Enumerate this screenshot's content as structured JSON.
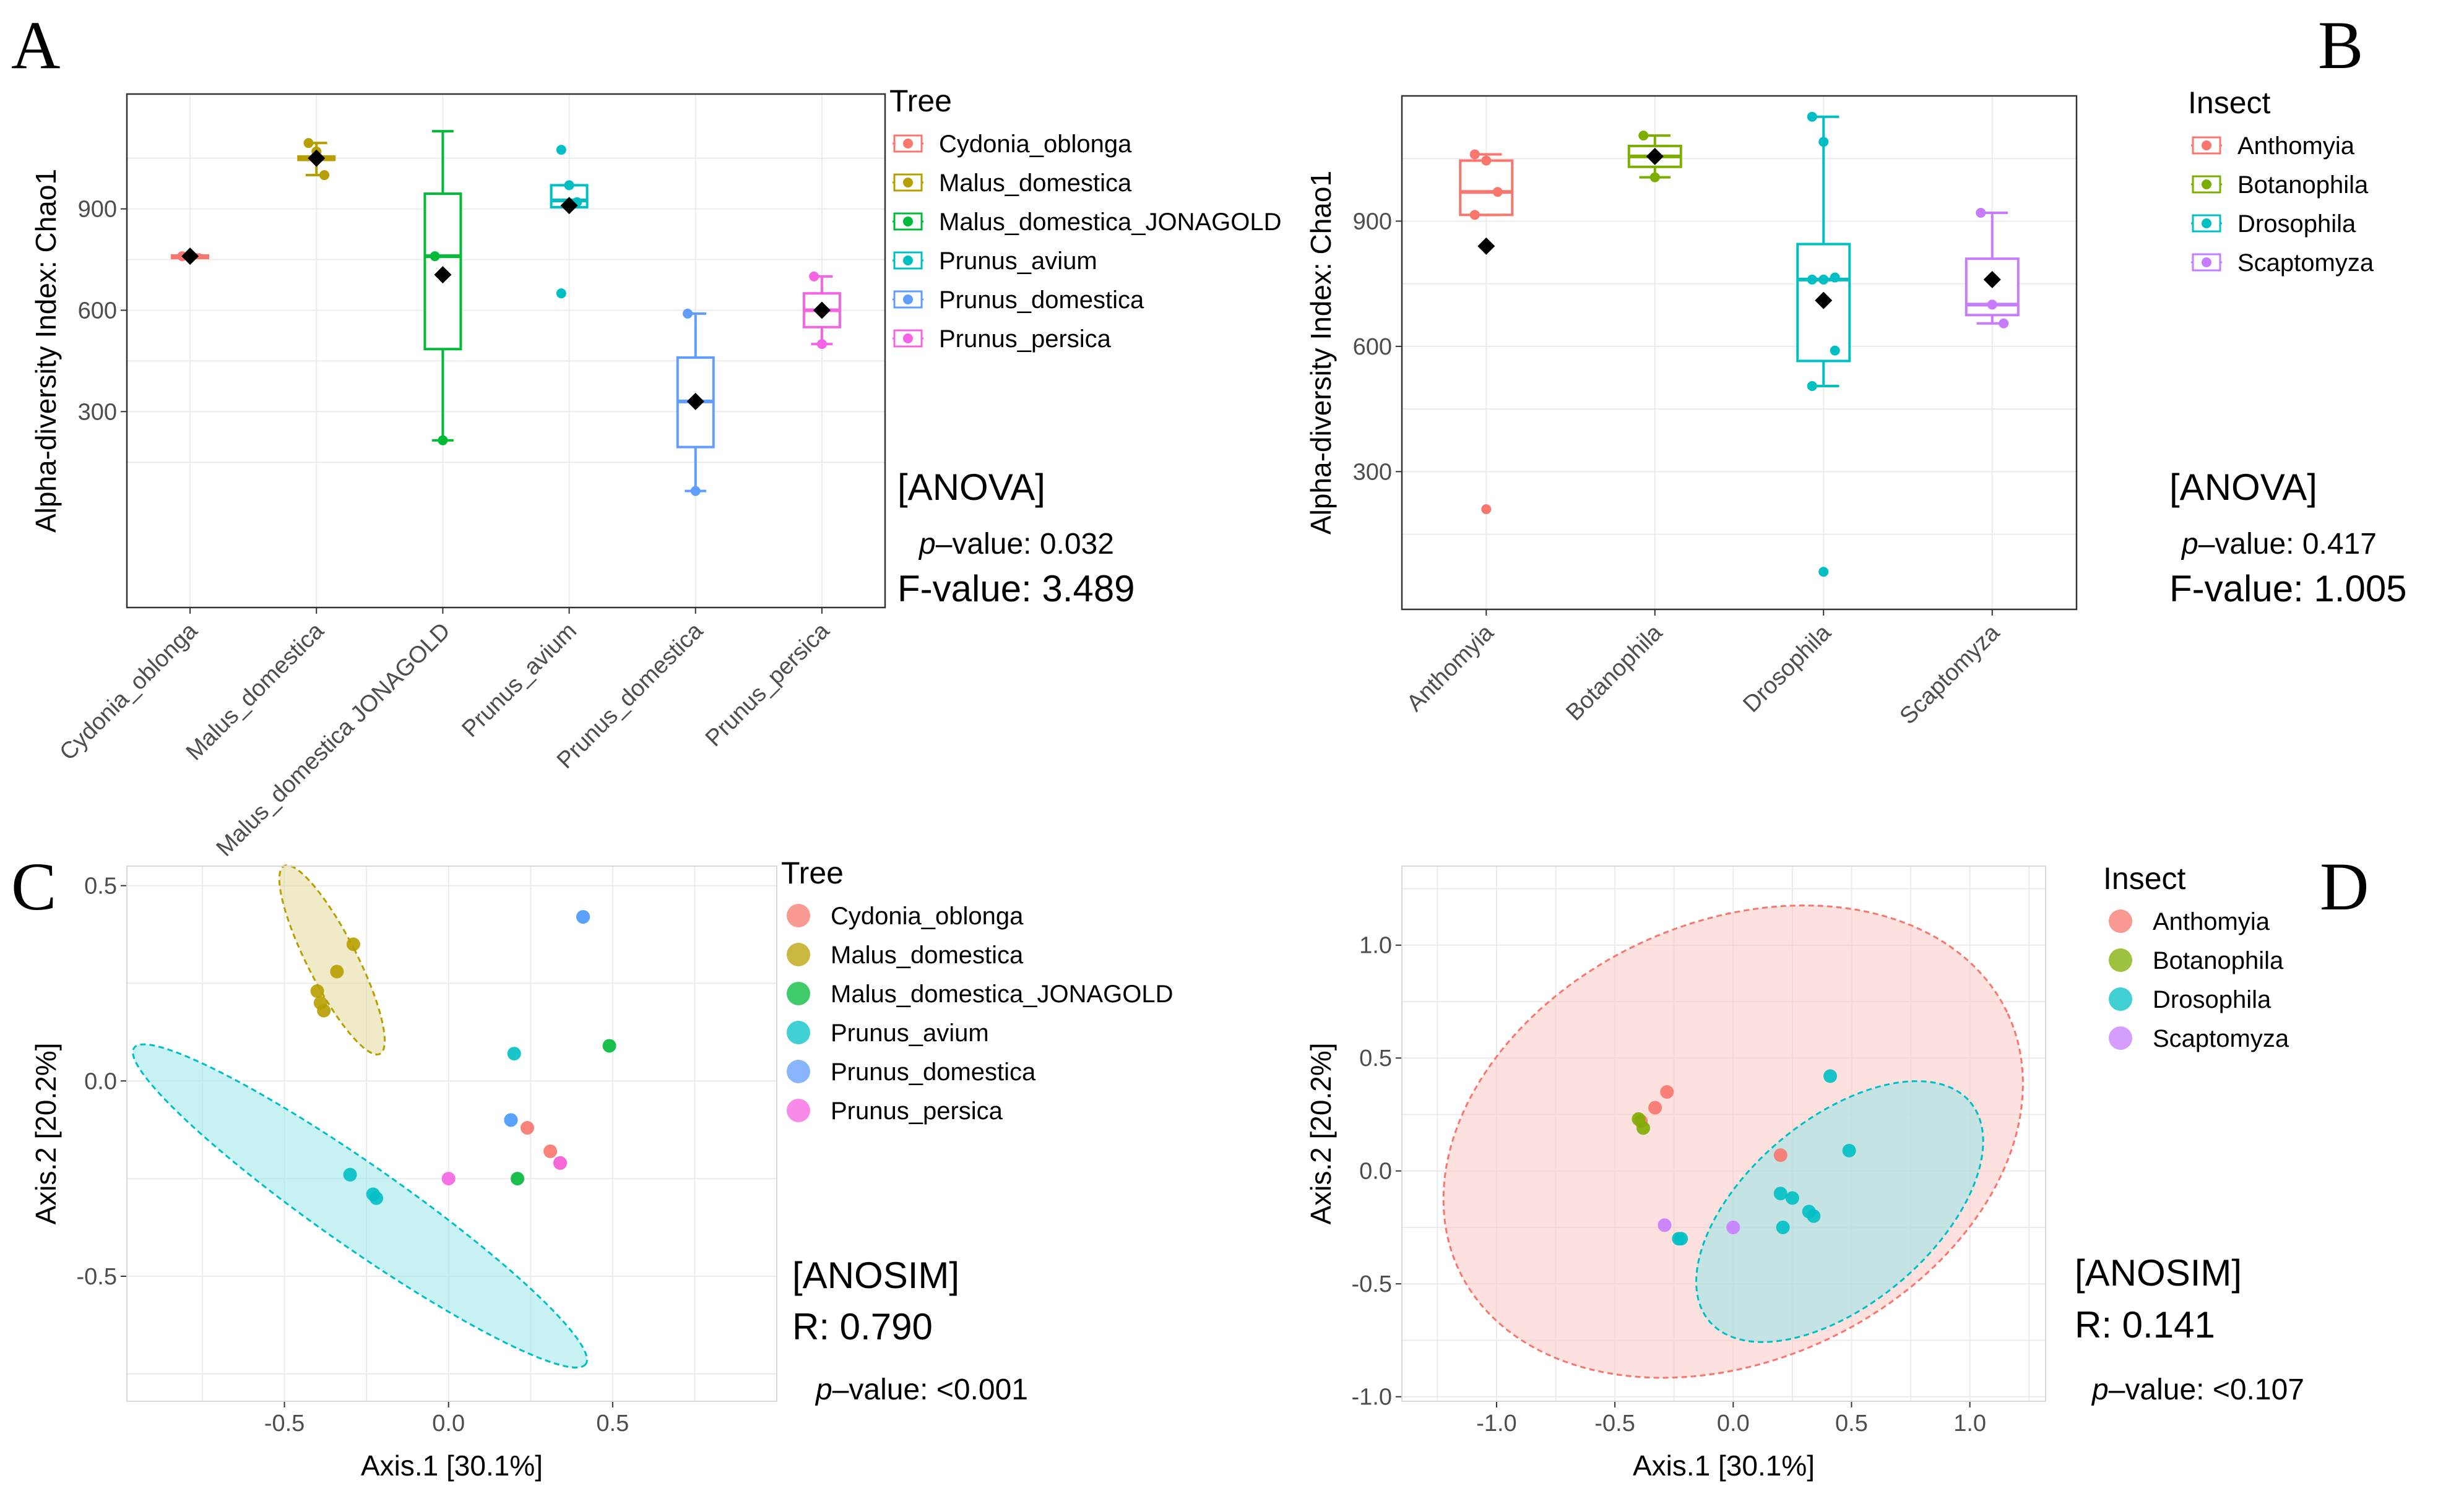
{
  "colors": {
    "Cydonia_oblonga": "#F8766D",
    "Malus_domestica": "#B79F00",
    "Malus_domestica_JONAGOLD": "#00BA38",
    "Prunus_avium": "#00BFC4",
    "Prunus_domestica": "#619CFF",
    "Prunus_persica": "#F564E3",
    "Anthomyia": "#F8766D",
    "Botanophila": "#7CAE00",
    "Drosophila": "#00BFC4",
    "Scaptomyza": "#C77CFF"
  },
  "panels": {
    "A": {
      "label": "A",
      "stat_name": "[ANOVA]",
      "p_label": "p",
      "p_text": "–value: 0.032",
      "f_text": "F-value: 3.489",
      "legend_title": "Tree"
    },
    "B": {
      "label": "B",
      "stat_name": "[ANOVA]",
      "p_label": "p",
      "p_text": "–value: 0.417",
      "f_text": "F-value: 1.005",
      "legend_title": "Insect"
    },
    "C": {
      "label": "C",
      "stat_name": "[ANOSIM]",
      "r_text": "R: 0.790",
      "p_label": "p",
      "p_text": "–value: <0.001",
      "legend_title": "Tree"
    },
    "D": {
      "label": "D",
      "stat_name": "[ANOSIM]",
      "r_text": "R: 0.141",
      "p_label": "p",
      "p_text": "–value: <0.107",
      "legend_title": "Insect"
    }
  },
  "chart_data": [
    {
      "panel": "A",
      "type": "box",
      "ylabel": "Alpha-diversity Index: Chao1",
      "xlabel": "",
      "ylim": [
        -280,
        1240
      ],
      "yticks": [
        300,
        600,
        900
      ],
      "grid": true,
      "legend_title": "Tree",
      "categories": [
        "Cydonia_oblonga",
        "Malus_domestica",
        "Malus_domestica JONAGOLD",
        "Prunus_avium",
        "Prunus_domestica",
        "Prunus_persica"
      ],
      "legend": [
        "Cydonia_oblonga",
        "Malus_domestica",
        "Malus_domestica_JONAGOLD",
        "Prunus_avium",
        "Prunus_domestica",
        "Prunus_persica"
      ],
      "groups": [
        {
          "name": "Cydonia_oblonga",
          "q1": 758,
          "median": 760,
          "q3": 762,
          "whisker_low": 755,
          "whisker_high": 765,
          "mean": 760,
          "points": [
            760
          ]
        },
        {
          "name": "Malus_domestica",
          "q1": 1045,
          "median": 1050,
          "q3": 1055,
          "whisker_low": 1000,
          "whisker_high": 1095,
          "mean": 1050,
          "points": [
            1095,
            1070,
            1000
          ]
        },
        {
          "name": "Malus_domestica_JONAGOLD",
          "q1": 485,
          "median": 760,
          "q3": 945,
          "whisker_low": 215,
          "whisker_high": 1130,
          "mean": 705,
          "points": [
            760,
            215
          ]
        },
        {
          "name": "Prunus_avium",
          "q1": 905,
          "median": 925,
          "q3": 970,
          "whisker_low": 905,
          "whisker_high": 970,
          "mean": 910,
          "points": [
            1075,
            970,
            920,
            650
          ]
        },
        {
          "name": "Prunus_domestica",
          "q1": 195,
          "median": 330,
          "q3": 460,
          "whisker_low": 65,
          "whisker_high": 590,
          "mean": 330,
          "points": [
            590,
            65
          ]
        },
        {
          "name": "Prunus_persica",
          "q1": 550,
          "median": 600,
          "q3": 650,
          "whisker_low": 500,
          "whisker_high": 700,
          "mean": 600,
          "points": [
            700,
            500
          ]
        }
      ]
    },
    {
      "panel": "B",
      "type": "box",
      "ylabel": "Alpha-diversity Index: Chao1",
      "xlabel": "",
      "ylim": [
        -30,
        1200
      ],
      "yticks": [
        300,
        600,
        900
      ],
      "grid": true,
      "legend_title": "Insect",
      "categories": [
        "Anthomyia",
        "Botanophila",
        "Drosophila",
        "Scaptomyza"
      ],
      "legend": [
        "Anthomyia",
        "Botanophila",
        "Drosophila",
        "Scaptomyza"
      ],
      "groups": [
        {
          "name": "Anthomyia",
          "q1": 915,
          "median": 970,
          "q3": 1045,
          "whisker_low": 915,
          "whisker_high": 1060,
          "mean": 840,
          "points": [
            1060,
            1045,
            970,
            915,
            210
          ]
        },
        {
          "name": "Botanophila",
          "q1": 1030,
          "median": 1055,
          "q3": 1080,
          "whisker_low": 1005,
          "whisker_high": 1105,
          "mean": 1055,
          "points": [
            1105,
            1005
          ]
        },
        {
          "name": "Drosophila",
          "q1": 565,
          "median": 760,
          "q3": 845,
          "whisker_low": 505,
          "whisker_high": 1150,
          "mean": 710,
          "points": [
            1150,
            1090,
            765,
            760,
            760,
            590,
            505,
            60
          ]
        },
        {
          "name": "Scaptomyza",
          "q1": 675,
          "median": 700,
          "q3": 810,
          "whisker_low": 655,
          "whisker_high": 920,
          "mean": 760,
          "points": [
            920,
            700,
            655
          ]
        }
      ]
    },
    {
      "panel": "C",
      "type": "scatter",
      "xlabel": "Axis.1   [30.1%]",
      "ylabel": "Axis.2   [20.2%]",
      "xlim": [
        -0.98,
        1.0
      ],
      "ylim": [
        -0.82,
        0.55
      ],
      "xticks": [
        -0.5,
        0.0,
        0.5
      ],
      "xtick_labels": [
        "-0.5",
        "0.0",
        "0.5"
      ],
      "yticks": [
        -0.5,
        0.0,
        0.5
      ],
      "ytick_labels": [
        "-0.5",
        "0.0",
        "0.5"
      ],
      "grid": true,
      "legend_title": "Tree",
      "legend": [
        "Cydonia_oblonga",
        "Malus_domestica",
        "Malus_domestica_JONAGOLD",
        "Prunus_avium",
        "Prunus_domestica",
        "Prunus_persica"
      ],
      "series": [
        {
          "name": "Cydonia_oblonga",
          "points": [
            [
              0.24,
              -0.12
            ],
            [
              0.31,
              -0.18
            ],
            [
              0.34,
              -0.21
            ]
          ]
        },
        {
          "name": "Malus_domestica",
          "points": [
            [
              -0.29,
              0.35
            ],
            [
              -0.34,
              0.28
            ],
            [
              -0.4,
              0.23
            ],
            [
              -0.38,
              0.18
            ],
            [
              -0.39,
              0.2
            ]
          ]
        },
        {
          "name": "Malus_domestica_JONAGOLD",
          "points": [
            [
              0.49,
              0.09
            ],
            [
              0.21,
              -0.25
            ]
          ]
        },
        {
          "name": "Prunus_avium",
          "points": [
            [
              0.41,
              0.42
            ],
            [
              0.2,
              0.07
            ],
            [
              -0.3,
              -0.24
            ],
            [
              -0.23,
              -0.29
            ],
            [
              -0.22,
              -0.3
            ],
            [
              0.19,
              -0.1
            ]
          ]
        },
        {
          "name": "Prunus_domestica",
          "points": [
            [
              0.41,
              0.42
            ],
            [
              0.19,
              -0.1
            ]
          ]
        },
        {
          "name": "Prunus_persica",
          "points": [
            [
              0.0,
              -0.25
            ],
            [
              0.34,
              -0.21
            ]
          ]
        }
      ],
      "ellipses": [
        {
          "group": "Malus_domestica",
          "center": [
            -0.355,
            0.31
          ],
          "semi_axes": [
            0.075,
            0.27
          ],
          "rotation_deg": 27
        },
        {
          "group": "Prunus_avium",
          "center": [
            -0.27,
            -0.32
          ],
          "semi_axes": [
            0.84,
            0.105
          ],
          "rotation_deg": -35
        }
      ]
    },
    {
      "panel": "D",
      "type": "scatter",
      "xlabel": "Axis.1   [30.1%]",
      "ylabel": "Axis.2   [20.2%]",
      "xlim": [
        -1.4,
        1.32
      ],
      "ylim": [
        -1.02,
        1.35
      ],
      "xticks": [
        -1.0,
        -0.5,
        0.0,
        0.5,
        1.0
      ],
      "xtick_labels": [
        "-1.0",
        "-0.5",
        "0.0",
        "0.5",
        "1.0"
      ],
      "yticks": [
        -1.0,
        -0.5,
        0.0,
        0.5,
        1.0
      ],
      "ytick_labels": [
        "-1.0",
        "-0.5",
        "0.0",
        "0.5",
        "1.0"
      ],
      "grid": true,
      "legend_title": "Insect",
      "legend": [
        "Anthomyia",
        "Botanophila",
        "Drosophila",
        "Scaptomyza"
      ],
      "series": [
        {
          "name": "Anthomyia",
          "points": [
            [
              -0.28,
              0.35
            ],
            [
              -0.33,
              0.28
            ],
            [
              -0.39,
              0.22
            ],
            [
              0.2,
              0.07
            ]
          ]
        },
        {
          "name": "Botanophila",
          "points": [
            [
              -0.4,
              0.23
            ],
            [
              -0.38,
              0.19
            ]
          ]
        },
        {
          "name": "Drosophila",
          "points": [
            [
              0.41,
              0.42
            ],
            [
              0.49,
              0.09
            ],
            [
              0.2,
              -0.1
            ],
            [
              0.25,
              -0.12
            ],
            [
              0.32,
              -0.18
            ],
            [
              0.34,
              -0.2
            ],
            [
              0.21,
              -0.25
            ],
            [
              -0.23,
              -0.3
            ],
            [
              -0.22,
              -0.3
            ]
          ]
        },
        {
          "name": "Scaptomyza",
          "points": [
            [
              -0.29,
              -0.24
            ],
            [
              0.0,
              -0.25
            ]
          ]
        }
      ],
      "ellipses": [
        {
          "group": "Anthomyia",
          "center": [
            0.0,
            0.13
          ],
          "semi_axes": [
            1.28,
            0.97
          ],
          "rotation_deg": 25
        },
        {
          "group": "Drosophila",
          "center": [
            0.45,
            -0.18
          ],
          "semi_axes": [
            0.72,
            0.41
          ],
          "rotation_deg": 40
        }
      ]
    }
  ]
}
